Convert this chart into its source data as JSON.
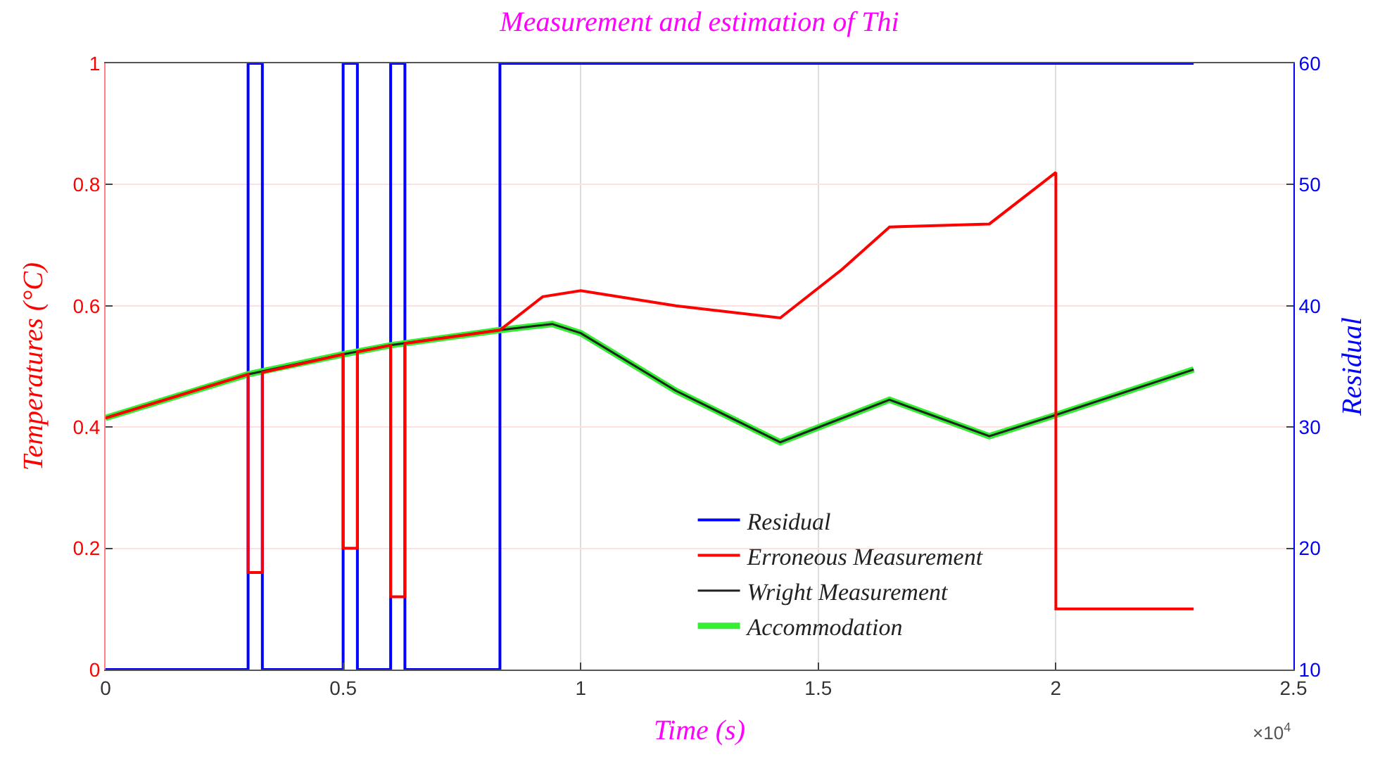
{
  "chart_data": {
    "type": "line",
    "title": "Measurement and estimation of Thi",
    "xlabel": "Time (s)",
    "ylabel": "Temperatures (°C)",
    "y2label": "Residual",
    "annotations": [
      "×10$^{4}$"
    ],
    "xlim": [
      0,
      2.5
    ],
    "xticks": [
      0,
      0.5,
      1,
      1.5,
      2,
      2.5
    ],
    "ylim": [
      0,
      1
    ],
    "yticks": [
      0,
      0.2,
      0.4,
      0.6,
      0.8,
      1
    ],
    "y2lim": [
      10,
      60
    ],
    "y2ticks": [
      10,
      20,
      30,
      40,
      50,
      60
    ],
    "grid": true,
    "legend": "bottom",
    "marker": "none",
    "line_style": "solid",
    "series": [
      {
        "name": "Residual",
        "color": "#0000ff",
        "axis": "y2",
        "x": [
          0,
          0.3,
          0.3,
          0.33,
          0.33,
          0.5,
          0.5,
          0.53,
          0.53,
          0.6,
          0.6,
          0.63,
          0.63,
          0.83,
          0.83,
          2.29
        ],
        "values": [
          10,
          10,
          60,
          60,
          10,
          10,
          60,
          60,
          10,
          10,
          60,
          60,
          10,
          10,
          60,
          60
        ]
      },
      {
        "name": "Erroneous Measurement",
        "color": "#ff0000",
        "x": [
          0,
          0.3,
          0.3,
          0.33,
          0.33,
          0.5,
          0.5,
          0.53,
          0.53,
          0.6,
          0.6,
          0.63,
          0.63,
          0.83,
          0.92,
          1.0,
          1.2,
          1.42,
          1.55,
          1.65,
          1.86,
          2.0,
          2.0,
          2.29
        ],
        "values": [
          0.415,
          0.487,
          0.16,
          0.16,
          0.49,
          0.52,
          0.2,
          0.2,
          0.524,
          0.535,
          0.12,
          0.12,
          0.538,
          0.56,
          0.615,
          0.625,
          0.6,
          0.58,
          0.66,
          0.73,
          0.735,
          0.82,
          0.1,
          0.1
        ]
      },
      {
        "name": "Wright Measurement",
        "color": "#222222",
        "x": [
          0,
          0.3,
          0.5,
          0.6,
          0.83,
          0.94,
          1.0,
          1.2,
          1.42,
          1.65,
          1.86,
          2.0,
          2.29
        ],
        "values": [
          0.415,
          0.487,
          0.52,
          0.535,
          0.56,
          0.57,
          0.555,
          0.46,
          0.375,
          0.445,
          0.385,
          0.42,
          0.495
        ]
      },
      {
        "name": "Accommodation",
        "color": "#33ee33",
        "x": [
          0,
          0.3,
          0.5,
          0.6,
          0.83,
          0.94,
          1.0,
          1.2,
          1.42,
          1.65,
          1.86,
          2.0,
          2.29
        ],
        "values": [
          0.415,
          0.487,
          0.52,
          0.535,
          0.56,
          0.57,
          0.555,
          0.46,
          0.375,
          0.445,
          0.385,
          0.42,
          0.495
        ]
      }
    ]
  }
}
